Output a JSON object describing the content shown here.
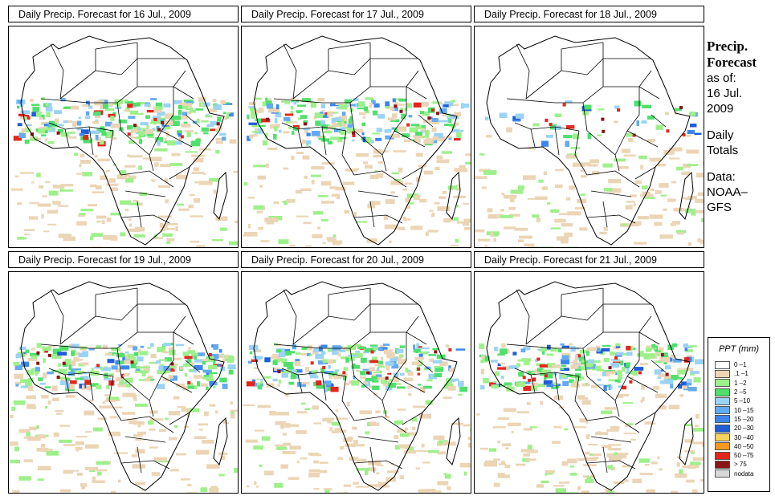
{
  "panels": [
    {
      "title": "Daily Precip. Forecast for",
      "date": "16 Jul., 2009"
    },
    {
      "title": "Daily Precip. Forecast for",
      "date": "17 Jul., 2009"
    },
    {
      "title": "Daily Precip. Forecast for",
      "date": "18 Jul., 2009"
    },
    {
      "title": "Daily Precip. Forecast for",
      "date": "19 Jul., 2009"
    },
    {
      "title": "Daily Precip. Forecast for",
      "date": "20 Jul., 2009"
    },
    {
      "title": "Daily Precip. Forecast for",
      "date": "21 Jul., 2009"
    }
  ],
  "side": {
    "heading_1": "Precip.",
    "heading_2": "Forecast",
    "asof_1": "as of:",
    "asof_2": "16 Jul.",
    "asof_3": "2009",
    "type_1": "Daily",
    "type_2": "Totals",
    "data_1": "Data:",
    "data_2": "NOAA–",
    "data_3": "GFS"
  },
  "legend": {
    "title": "PPT (mm)",
    "items": [
      {
        "label": "0 –1",
        "color": "#ffffff"
      },
      {
        "label": ".1 –1",
        "color": "#ebd5b5"
      },
      {
        "label": "1 –2",
        "color": "#9ef08a"
      },
      {
        "label": "2 –5",
        "color": "#4fe06b"
      },
      {
        "label": "5 –10",
        "color": "#9ad3f5"
      },
      {
        "label": "10 –15",
        "color": "#63aaf0"
      },
      {
        "label": "15 –20",
        "color": "#3c86ea"
      },
      {
        "label": "20 –30",
        "color": "#1f5cd6"
      },
      {
        "label": "30 –40",
        "color": "#f5d45a"
      },
      {
        "label": "40 –50",
        "color": "#f59a1e"
      },
      {
        "label": "50 –75",
        "color": "#e3261c"
      },
      {
        "label": "> 75",
        "color": "#8a1416"
      },
      {
        "label": "nodata",
        "color": "#d8d8d8"
      }
    ]
  },
  "colors": {
    "border": "#000000",
    "background": "#ffffff"
  }
}
